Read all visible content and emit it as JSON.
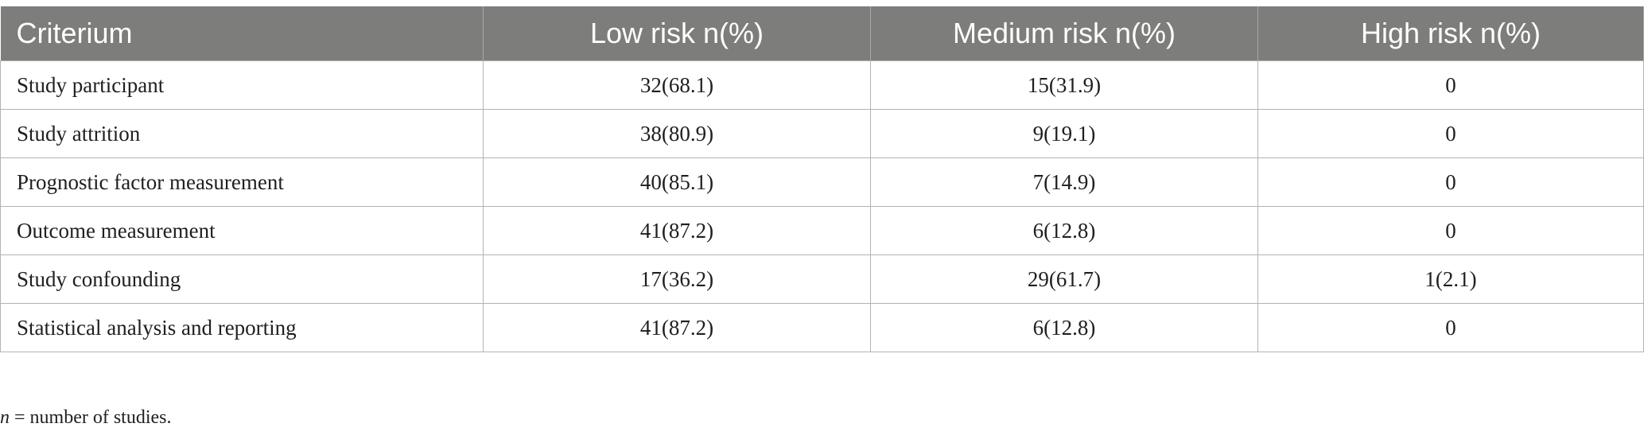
{
  "table": {
    "headers": [
      "Criterium",
      "Low risk n(%)",
      "Medium risk n(%)",
      "High risk n(%)"
    ],
    "rows": [
      [
        "Study participant",
        "32(68.1)",
        "15(31.9)",
        "0"
      ],
      [
        "Study attrition",
        "38(80.9)",
        "9(19.1)",
        "0"
      ],
      [
        "Prognostic factor measurement",
        "40(85.1)",
        "7(14.9)",
        "0"
      ],
      [
        "Outcome measurement",
        "41(87.2)",
        "6(12.8)",
        "0"
      ],
      [
        "Study confounding",
        "17(36.2)",
        "29(61.7)",
        "1(2.1)"
      ],
      [
        "Statistical analysis and reporting",
        "41(87.2)",
        "6(12.8)",
        "0"
      ]
    ]
  },
  "footnote": {
    "symbol": "n",
    "text": " = number of studies."
  },
  "colors": {
    "header_background": "#7d7e7c",
    "header_text": "#ffffff",
    "grid_lines": "#b3b3b3"
  }
}
